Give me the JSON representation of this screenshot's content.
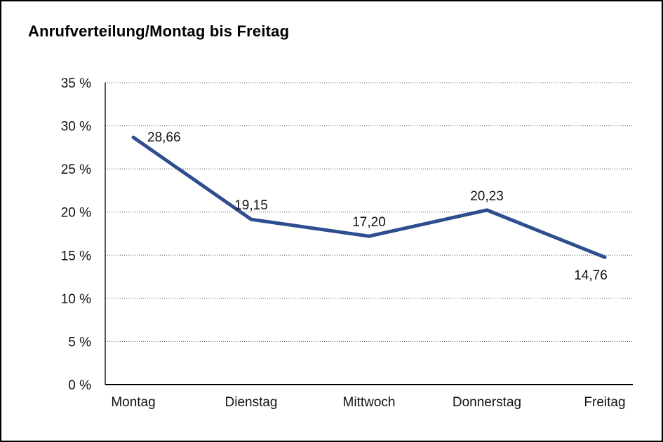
{
  "chart_data": {
    "type": "line",
    "title": "Anrufverteilung/Montag bis Freitag",
    "categories": [
      "Montag",
      "Dienstag",
      "Mittwoch",
      "Donnerstag",
      "Freitag"
    ],
    "series": [
      {
        "name": "Anrufverteilung",
        "values": [
          28.66,
          19.15,
          17.2,
          20.23,
          14.76
        ]
      }
    ],
    "value_labels": [
      "28,66",
      "19,15",
      "17,20",
      "20,23",
      "14,76"
    ],
    "label_positions": [
      "right",
      "above",
      "above",
      "above",
      "below"
    ],
    "xlabel": "",
    "ylabel": "",
    "ylim": [
      0,
      35
    ],
    "ytick_step": 5,
    "ytick_suffix": " %",
    "grid": "horizontal-dotted",
    "legend": "none",
    "line_color": "#2f4e8f",
    "background_color": "#ffffff",
    "border_color": "#000000"
  }
}
